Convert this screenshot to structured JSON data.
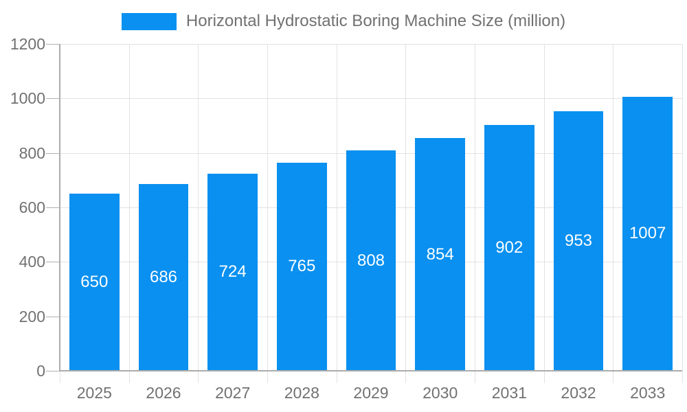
{
  "legend": {
    "position": "top-center"
  },
  "colors": {
    "bar": "#0990f0",
    "axis_text": "#717171",
    "value_label_text": "#ffffff",
    "gridline": "#e2e2e2",
    "axis_line": "#ababab",
    "tick": "#b0b0b0",
    "background": "#ffffff"
  },
  "chart_data": {
    "type": "bar",
    "title": "",
    "categories": [
      "2025",
      "2026",
      "2027",
      "2028",
      "2029",
      "2030",
      "2031",
      "2032",
      "2033"
    ],
    "series": [
      {
        "name": "Horizontal Hydrostatic Boring Machine Size (million)",
        "values": [
          650,
          686,
          724,
          765,
          808,
          854,
          902,
          953,
          1007
        ]
      }
    ],
    "xlabel": "",
    "ylabel": "",
    "ylim": [
      0,
      1200
    ],
    "yticks": [
      0,
      200,
      400,
      600,
      800,
      1000,
      1200
    ],
    "grid": true,
    "legend_position": "top",
    "value_labels_position": "inside-middle"
  }
}
